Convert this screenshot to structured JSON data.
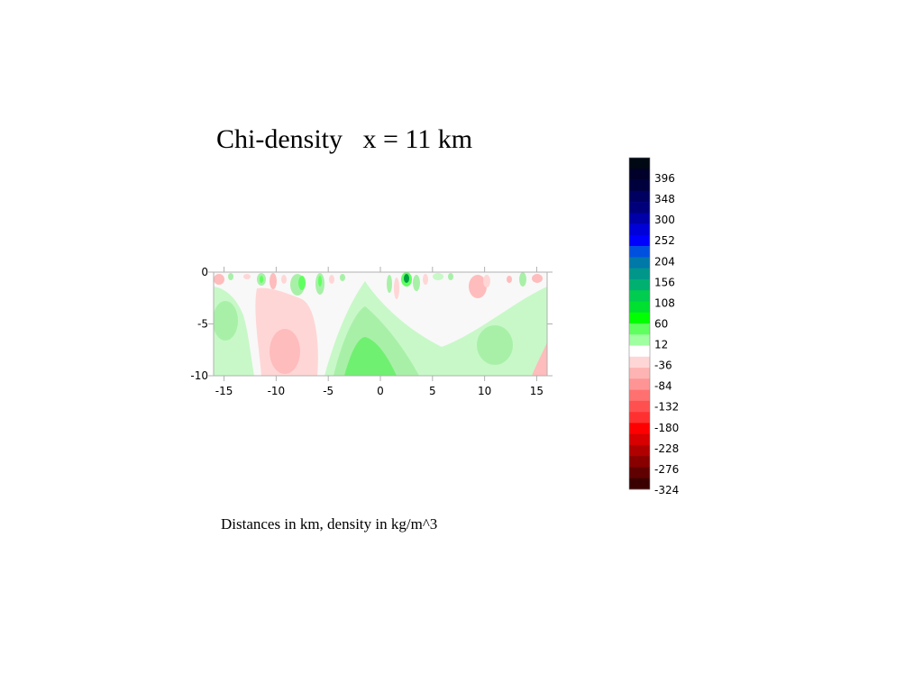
{
  "chart_data": {
    "type": "heatmap",
    "title": "Chi-density   x = 11 km",
    "caption": "Distances in km, density in kg/m^3",
    "x_ticks": [
      -15,
      -10,
      -5,
      0,
      5,
      10,
      15
    ],
    "y_ticks": [
      0,
      -5,
      -10
    ],
    "xlim": [
      -16,
      16
    ],
    "ylim": [
      -10,
      0
    ],
    "colorbar": {
      "labels": [
        "396",
        "348",
        "300",
        "252",
        "204",
        "156",
        "108",
        "60",
        "12",
        "-36",
        "-84",
        "-132",
        "-180",
        "-228",
        "-276",
        "-324"
      ],
      "colors": [
        "#000814",
        "#00002a",
        "#00003d",
        "#000060",
        "#00007a",
        "#0000a8",
        "#0000d8",
        "#0000ff",
        "#0050e0",
        "#0078a8",
        "#00968a",
        "#00b070",
        "#00cc50",
        "#00e030",
        "#00ff00",
        "#60ff60",
        "#a0ffa0",
        "#ffffff",
        "#ffd6d6",
        "#ffb4b4",
        "#ff9494",
        "#ff7070",
        "#ff5050",
        "#ff3030",
        "#ff0000",
        "#d80000",
        "#b00000",
        "#880000",
        "#600000",
        "#3a0000"
      ]
    }
  }
}
